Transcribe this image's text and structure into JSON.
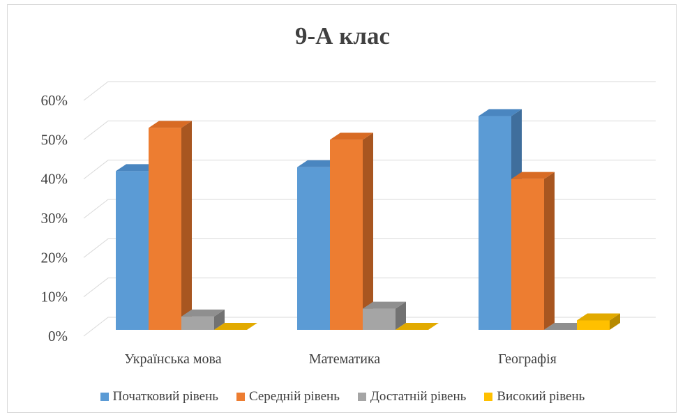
{
  "chart_data": {
    "type": "bar",
    "title": "9-А клас",
    "categories": [
      "Українська мова",
      "Математика",
      "Географія"
    ],
    "series": [
      {
        "name": "Початковий рівень",
        "values": [
          42,
          43,
          56
        ],
        "color": "#5b9bd5",
        "side": "#3f6e9c",
        "top": "#4a86c0"
      },
      {
        "name": "Середній рівень",
        "values": [
          53,
          50,
          40
        ],
        "color": "#ed7d31",
        "side": "#a85620",
        "top": "#d86b24"
      },
      {
        "name": "Достатній рівень",
        "values": [
          5,
          7,
          0
        ],
        "color": "#a5a5a5",
        "side": "#727272",
        "top": "#8f8f8f"
      },
      {
        "name": "Високий рівень",
        "values": [
          0,
          0,
          4
        ],
        "color": "#ffc000",
        "side": "#b78a00",
        "top": "#e2aa00"
      }
    ],
    "ylim": [
      0,
      60
    ],
    "yticks": [
      "0%",
      "10%",
      "20%",
      "30%",
      "40%",
      "50%",
      "60%"
    ],
    "grid": true,
    "legend_position": "bottom",
    "three_d": true
  }
}
